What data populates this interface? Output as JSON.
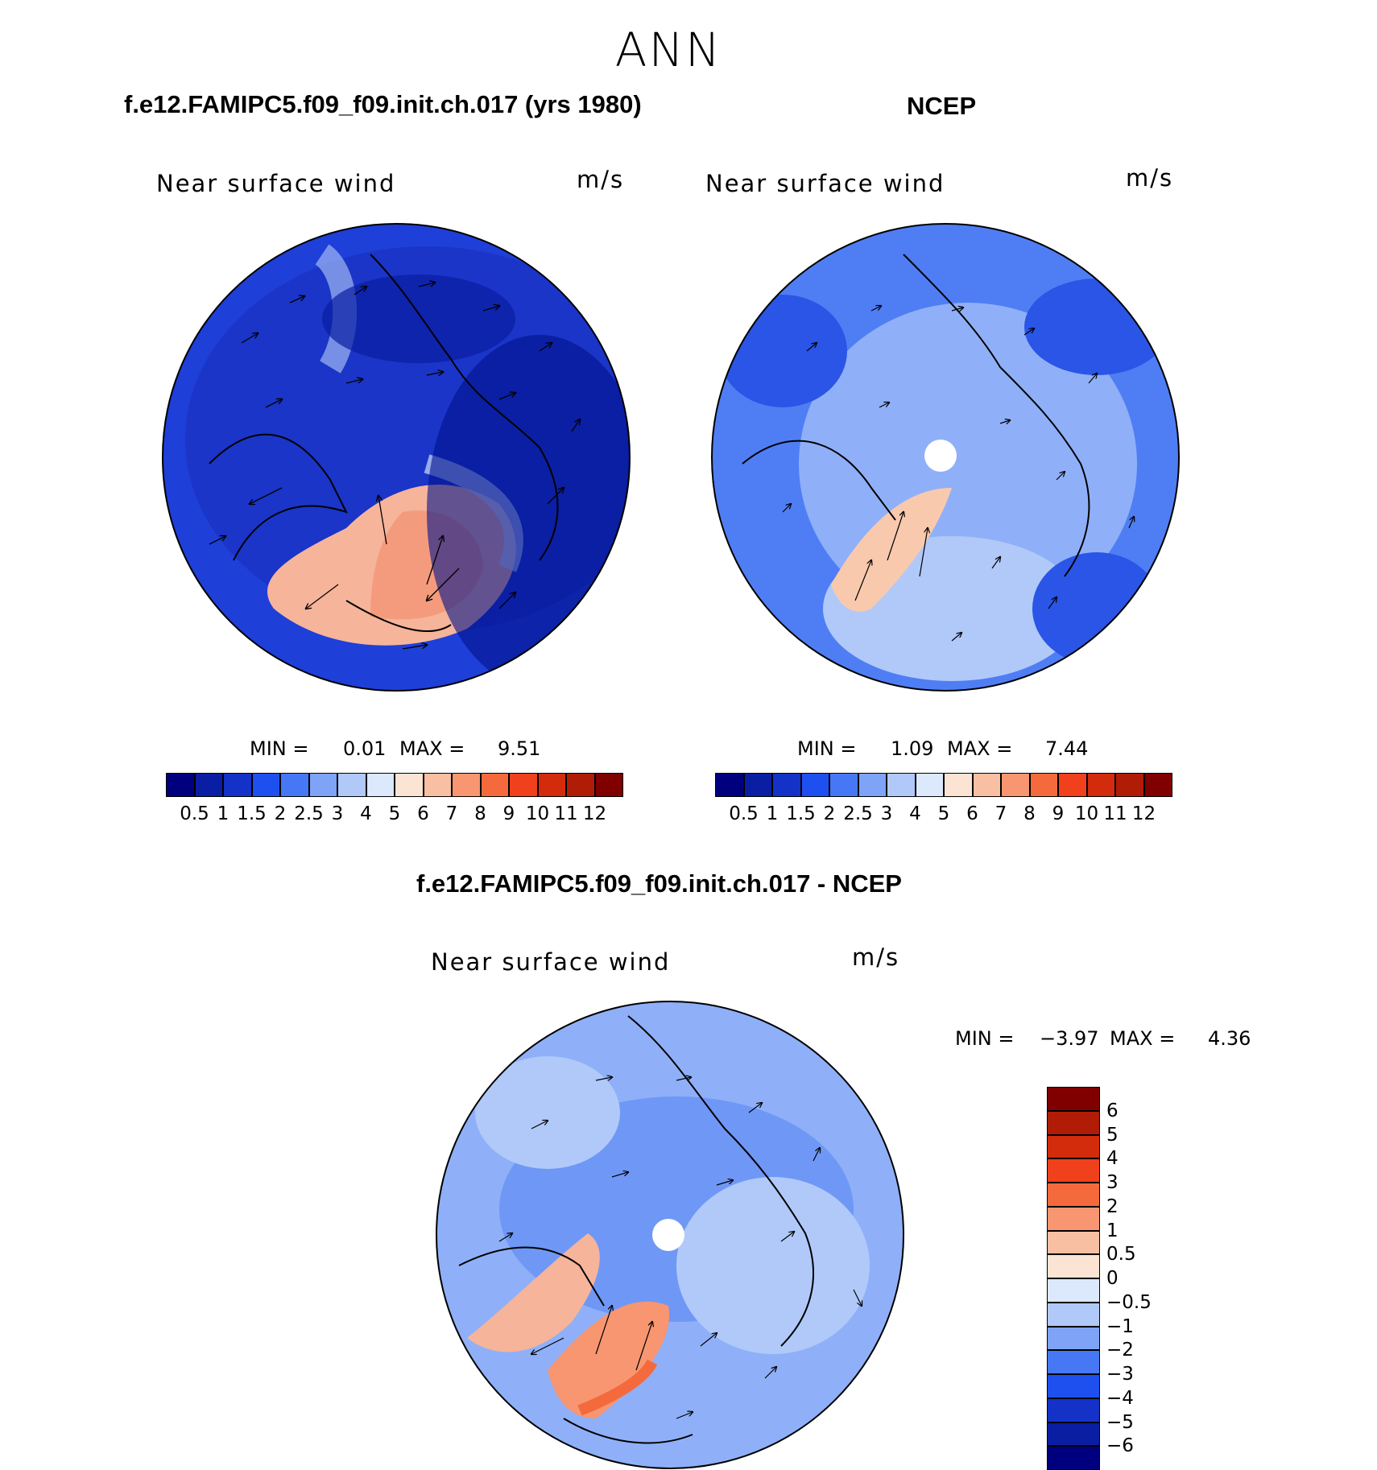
{
  "figure": {
    "season": "ANN"
  },
  "panels": [
    {
      "id": "model",
      "title": "f.e12.FAMIPC5.f09_f09.init.ch.017 (yrs 1980)",
      "variable": "Near surface wind",
      "units": "m/s",
      "min_label": "MIN =",
      "min_value": "0.01",
      "max_label": "MAX =",
      "max_value": "9.51"
    },
    {
      "id": "obs",
      "title": "NCEP",
      "variable": "Near surface wind",
      "units": "m/s",
      "min_label": "MIN =",
      "min_value": "1.09",
      "max_label": "MAX =",
      "max_value": "7.44"
    },
    {
      "id": "diff",
      "title": "f.e12.FAMIPC5.f09_f09.init.ch.017 - NCEP",
      "variable": "Near surface wind",
      "units": "m/s",
      "min_label": "MIN =",
      "min_value": "−3.97",
      "max_label": "MAX =",
      "max_value": "4.36"
    }
  ],
  "colorbars": {
    "absolute": {
      "levels": [
        "0.5",
        "1",
        "1.5",
        "2",
        "2.5",
        "3",
        "4",
        "5",
        "6",
        "7",
        "8",
        "9",
        "10",
        "11",
        "12"
      ],
      "colors": [
        "#00007f",
        "#0a1ea3",
        "#1432c8",
        "#1e50f0",
        "#4678f5",
        "#7ea3f7",
        "#b0c9f9",
        "#dce8fb",
        "#fbe4d3",
        "#f9bfa2",
        "#f79670",
        "#f56a3c",
        "#f0401c",
        "#d22c0c",
        "#b01c06",
        "#800000"
      ]
    },
    "difference": {
      "levels": [
        "−6",
        "−5",
        "−4",
        "−3",
        "−2",
        "−1",
        "−0.5",
        "0",
        "0.5",
        "1",
        "2",
        "3",
        "4",
        "5",
        "6"
      ],
      "colors": [
        "#00007f",
        "#0a1ea3",
        "#1432c8",
        "#1e50f0",
        "#4678f5",
        "#7ea3f7",
        "#b0c9f9",
        "#dce8fb",
        "#fbe4d3",
        "#f9bfa2",
        "#f79670",
        "#f56a3c",
        "#f0401c",
        "#d22c0c",
        "#b01c06",
        "#800000"
      ]
    }
  }
}
